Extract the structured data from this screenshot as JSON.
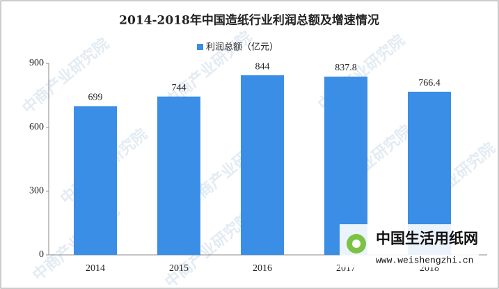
{
  "chart_data": {
    "type": "bar",
    "title": "2014-2018年中国造纸行业利润总额及增速情况",
    "categories": [
      "2014",
      "2015",
      "2016",
      "2017",
      "2018"
    ],
    "series": [
      {
        "name": "利润总额（亿元）",
        "color": "#3a8ee6",
        "values": [
          699,
          744,
          844,
          837.8,
          766.4
        ]
      }
    ],
    "ylim": [
      0,
      900
    ],
    "yticks": [
      0,
      300,
      600,
      900
    ],
    "grid": false
  },
  "watermark": "中商产业研究院",
  "logo": {
    "name": "中国生活用纸网",
    "url": "www.weishengzhi.cn"
  }
}
